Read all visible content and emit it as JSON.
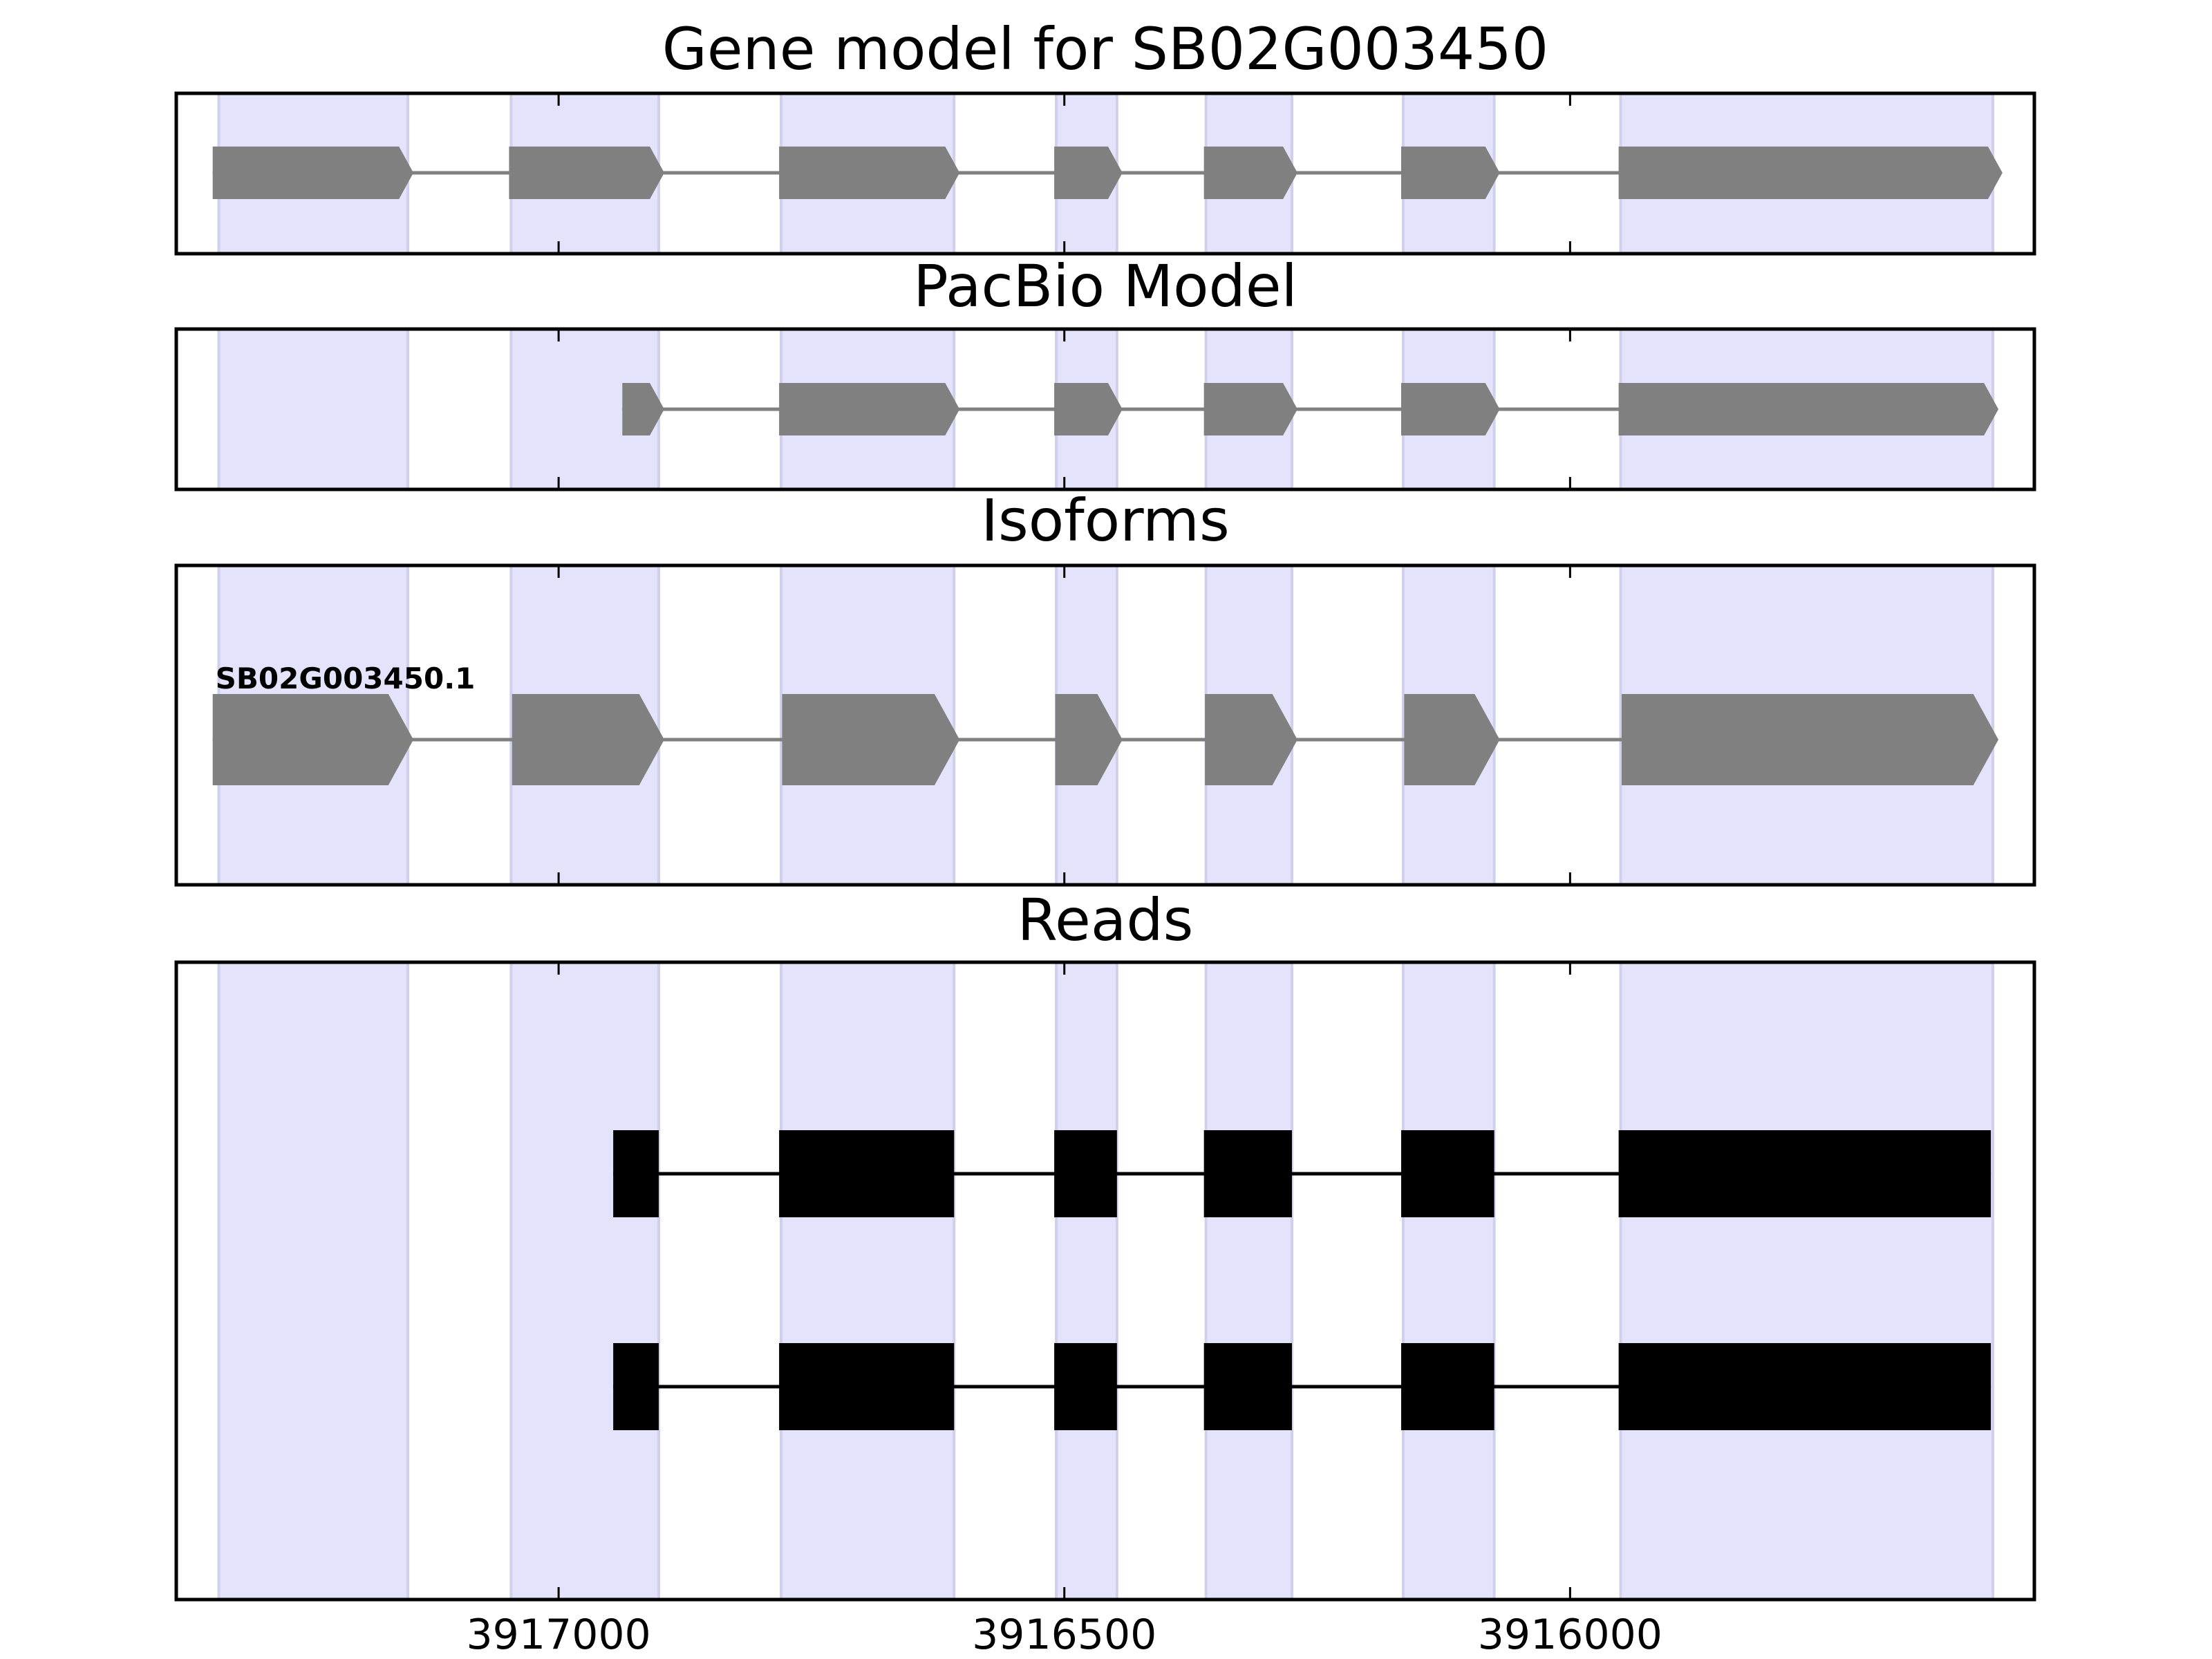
{
  "chart_data": {
    "type": "gene-structure",
    "xlim": [
      3917378,
      3915541
    ],
    "x_reversed": true,
    "xticks": [
      3917000,
      3916500,
      3916000
    ],
    "xtick_labels": [
      "3917000",
      "3916500",
      "3916000"
    ],
    "colors": {
      "shade": "#e3e3fc",
      "shade_edge": "#d0d0ec",
      "model": "#808080",
      "read": "#000000",
      "frame": "#000000"
    },
    "exon_regions": [
      [
        3917336,
        3917149
      ],
      [
        3917047,
        3916901
      ],
      [
        3916780,
        3916609
      ],
      [
        3916508,
        3916448
      ],
      [
        3916360,
        3916275
      ],
      [
        3916165,
        3916075
      ],
      [
        3915950,
        3915582
      ]
    ],
    "panels": [
      {
        "title": "Gene model for SB02G003450",
        "kind": "model",
        "tracks": [
          {
            "label": "",
            "exons": [
              [
                3917342,
                3917149
              ],
              [
                3917049,
                3916901
              ],
              [
                3916782,
                3916609
              ],
              [
                3916510,
                3916448
              ],
              [
                3916362,
                3916275
              ],
              [
                3916167,
                3916075
              ],
              [
                3915952,
                3915578
              ]
            ]
          }
        ]
      },
      {
        "title": "PacBio Model",
        "kind": "model",
        "tracks": [
          {
            "label": "",
            "exons": [
              [
                3916937,
                3916901
              ],
              [
                3916782,
                3916609
              ],
              [
                3916510,
                3916448
              ],
              [
                3916362,
                3916275
              ],
              [
                3916167,
                3916075
              ],
              [
                3915952,
                3915582
              ]
            ]
          }
        ]
      },
      {
        "title": "Isoforms",
        "kind": "model",
        "tracks": [
          {
            "label": "SB02G003450.1",
            "exons": [
              [
                3917342,
                3917149
              ],
              [
                3917046,
                3916901
              ],
              [
                3916779,
                3916609
              ],
              [
                3916509,
                3916448
              ],
              [
                3916361,
                3916275
              ],
              [
                3916164,
                3916075
              ],
              [
                3915949,
                3915582
              ]
            ]
          }
        ]
      },
      {
        "title": "Reads",
        "kind": "reads",
        "tracks": [
          {
            "label": "",
            "exons": [
              [
                3916946,
                3916901
              ],
              [
                3916782,
                3916609
              ],
              [
                3916510,
                3916448
              ],
              [
                3916362,
                3916275
              ],
              [
                3916167,
                3916075
              ],
              [
                3915952,
                3915584
              ]
            ]
          },
          {
            "label": "",
            "exons": [
              [
                3916946,
                3916901
              ],
              [
                3916782,
                3916609
              ],
              [
                3916510,
                3916448
              ],
              [
                3916362,
                3916275
              ],
              [
                3916167,
                3916075
              ],
              [
                3915952,
                3915584
              ]
            ]
          }
        ]
      }
    ]
  }
}
